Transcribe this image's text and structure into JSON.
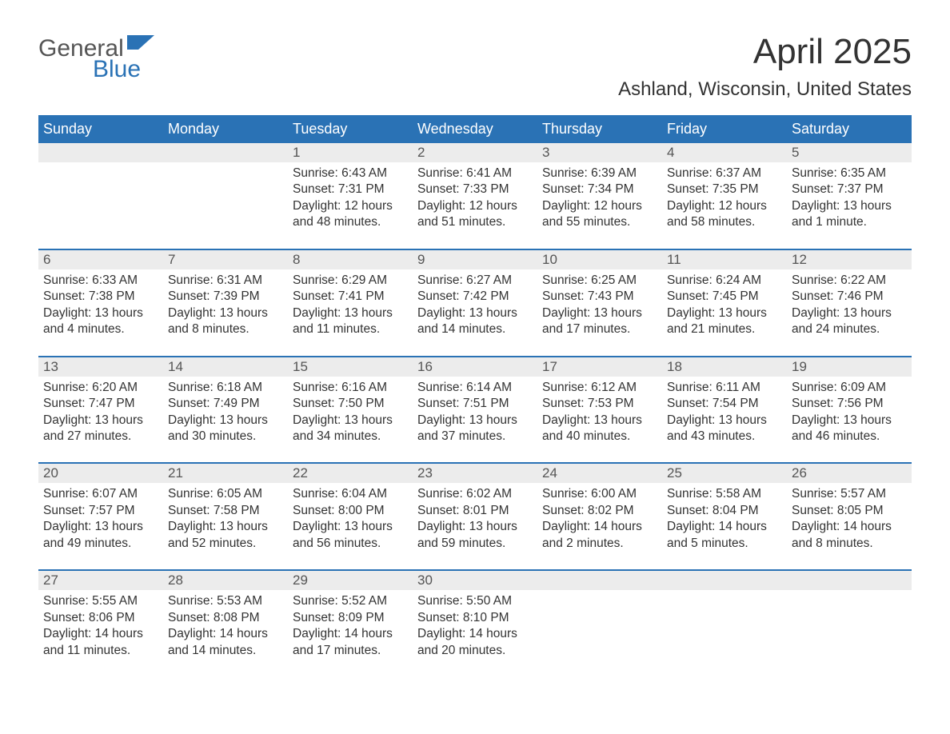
{
  "logo": {
    "word1": "General",
    "word2": "Blue"
  },
  "title": "April 2025",
  "location": "Ashland, Wisconsin, United States",
  "colors": {
    "header_bg": "#2a72b5",
    "header_text": "#ffffff",
    "daynum_bg": "#ececec",
    "daynum_text": "#555555",
    "body_text": "#333333",
    "rule": "#2a72b5",
    "logo_gray": "#555555",
    "logo_blue": "#2a72b5",
    "page_bg": "#ffffff"
  },
  "typography": {
    "title_fontsize": 44,
    "location_fontsize": 24,
    "header_fontsize": 18,
    "daynum_fontsize": 17,
    "body_fontsize": 15.5,
    "logo_fontsize": 30
  },
  "days_of_week": [
    "Sunday",
    "Monday",
    "Tuesday",
    "Wednesday",
    "Thursday",
    "Friday",
    "Saturday"
  ],
  "weeks": [
    [
      {
        "n": "",
        "sr": "",
        "ss": "",
        "dl": ""
      },
      {
        "n": "",
        "sr": "",
        "ss": "",
        "dl": ""
      },
      {
        "n": "1",
        "sr": "Sunrise: 6:43 AM",
        "ss": "Sunset: 7:31 PM",
        "dl": "Daylight: 12 hours and 48 minutes."
      },
      {
        "n": "2",
        "sr": "Sunrise: 6:41 AM",
        "ss": "Sunset: 7:33 PM",
        "dl": "Daylight: 12 hours and 51 minutes."
      },
      {
        "n": "3",
        "sr": "Sunrise: 6:39 AM",
        "ss": "Sunset: 7:34 PM",
        "dl": "Daylight: 12 hours and 55 minutes."
      },
      {
        "n": "4",
        "sr": "Sunrise: 6:37 AM",
        "ss": "Sunset: 7:35 PM",
        "dl": "Daylight: 12 hours and 58 minutes."
      },
      {
        "n": "5",
        "sr": "Sunrise: 6:35 AM",
        "ss": "Sunset: 7:37 PM",
        "dl": "Daylight: 13 hours and 1 minute."
      }
    ],
    [
      {
        "n": "6",
        "sr": "Sunrise: 6:33 AM",
        "ss": "Sunset: 7:38 PM",
        "dl": "Daylight: 13 hours and 4 minutes."
      },
      {
        "n": "7",
        "sr": "Sunrise: 6:31 AM",
        "ss": "Sunset: 7:39 PM",
        "dl": "Daylight: 13 hours and 8 minutes."
      },
      {
        "n": "8",
        "sr": "Sunrise: 6:29 AM",
        "ss": "Sunset: 7:41 PM",
        "dl": "Daylight: 13 hours and 11 minutes."
      },
      {
        "n": "9",
        "sr": "Sunrise: 6:27 AM",
        "ss": "Sunset: 7:42 PM",
        "dl": "Daylight: 13 hours and 14 minutes."
      },
      {
        "n": "10",
        "sr": "Sunrise: 6:25 AM",
        "ss": "Sunset: 7:43 PM",
        "dl": "Daylight: 13 hours and 17 minutes."
      },
      {
        "n": "11",
        "sr": "Sunrise: 6:24 AM",
        "ss": "Sunset: 7:45 PM",
        "dl": "Daylight: 13 hours and 21 minutes."
      },
      {
        "n": "12",
        "sr": "Sunrise: 6:22 AM",
        "ss": "Sunset: 7:46 PM",
        "dl": "Daylight: 13 hours and 24 minutes."
      }
    ],
    [
      {
        "n": "13",
        "sr": "Sunrise: 6:20 AM",
        "ss": "Sunset: 7:47 PM",
        "dl": "Daylight: 13 hours and 27 minutes."
      },
      {
        "n": "14",
        "sr": "Sunrise: 6:18 AM",
        "ss": "Sunset: 7:49 PM",
        "dl": "Daylight: 13 hours and 30 minutes."
      },
      {
        "n": "15",
        "sr": "Sunrise: 6:16 AM",
        "ss": "Sunset: 7:50 PM",
        "dl": "Daylight: 13 hours and 34 minutes."
      },
      {
        "n": "16",
        "sr": "Sunrise: 6:14 AM",
        "ss": "Sunset: 7:51 PM",
        "dl": "Daylight: 13 hours and 37 minutes."
      },
      {
        "n": "17",
        "sr": "Sunrise: 6:12 AM",
        "ss": "Sunset: 7:53 PM",
        "dl": "Daylight: 13 hours and 40 minutes."
      },
      {
        "n": "18",
        "sr": "Sunrise: 6:11 AM",
        "ss": "Sunset: 7:54 PM",
        "dl": "Daylight: 13 hours and 43 minutes."
      },
      {
        "n": "19",
        "sr": "Sunrise: 6:09 AM",
        "ss": "Sunset: 7:56 PM",
        "dl": "Daylight: 13 hours and 46 minutes."
      }
    ],
    [
      {
        "n": "20",
        "sr": "Sunrise: 6:07 AM",
        "ss": "Sunset: 7:57 PM",
        "dl": "Daylight: 13 hours and 49 minutes."
      },
      {
        "n": "21",
        "sr": "Sunrise: 6:05 AM",
        "ss": "Sunset: 7:58 PM",
        "dl": "Daylight: 13 hours and 52 minutes."
      },
      {
        "n": "22",
        "sr": "Sunrise: 6:04 AM",
        "ss": "Sunset: 8:00 PM",
        "dl": "Daylight: 13 hours and 56 minutes."
      },
      {
        "n": "23",
        "sr": "Sunrise: 6:02 AM",
        "ss": "Sunset: 8:01 PM",
        "dl": "Daylight: 13 hours and 59 minutes."
      },
      {
        "n": "24",
        "sr": "Sunrise: 6:00 AM",
        "ss": "Sunset: 8:02 PM",
        "dl": "Daylight: 14 hours and 2 minutes."
      },
      {
        "n": "25",
        "sr": "Sunrise: 5:58 AM",
        "ss": "Sunset: 8:04 PM",
        "dl": "Daylight: 14 hours and 5 minutes."
      },
      {
        "n": "26",
        "sr": "Sunrise: 5:57 AM",
        "ss": "Sunset: 8:05 PM",
        "dl": "Daylight: 14 hours and 8 minutes."
      }
    ],
    [
      {
        "n": "27",
        "sr": "Sunrise: 5:55 AM",
        "ss": "Sunset: 8:06 PM",
        "dl": "Daylight: 14 hours and 11 minutes."
      },
      {
        "n": "28",
        "sr": "Sunrise: 5:53 AM",
        "ss": "Sunset: 8:08 PM",
        "dl": "Daylight: 14 hours and 14 minutes."
      },
      {
        "n": "29",
        "sr": "Sunrise: 5:52 AM",
        "ss": "Sunset: 8:09 PM",
        "dl": "Daylight: 14 hours and 17 minutes."
      },
      {
        "n": "30",
        "sr": "Sunrise: 5:50 AM",
        "ss": "Sunset: 8:10 PM",
        "dl": "Daylight: 14 hours and 20 minutes."
      },
      {
        "n": "",
        "sr": "",
        "ss": "",
        "dl": ""
      },
      {
        "n": "",
        "sr": "",
        "ss": "",
        "dl": ""
      },
      {
        "n": "",
        "sr": "",
        "ss": "",
        "dl": ""
      }
    ]
  ]
}
